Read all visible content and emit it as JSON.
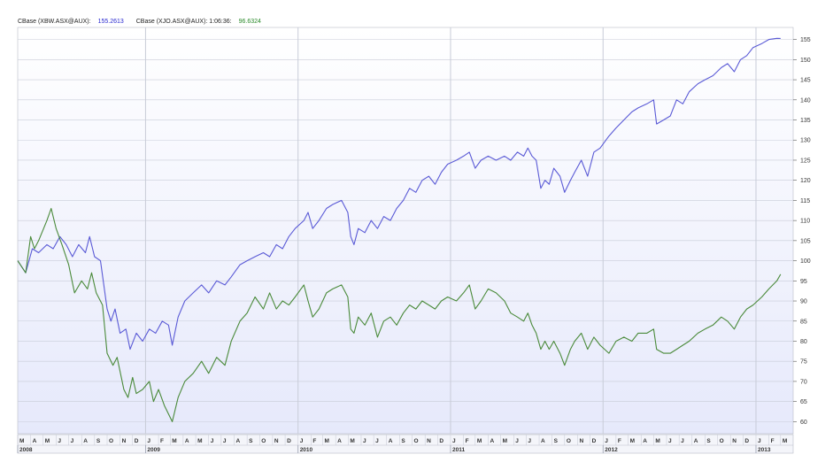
{
  "legend": {
    "series_1_label": "CBase (XBW.ASX@AUX):",
    "series_1_value": "155.2613",
    "series_2_label": "CBase (XJO.ASX@AUX): 1:06:36:",
    "series_2_value": "96.6324"
  },
  "colors": {
    "series_1": "#5a5ad6",
    "series_2": "#4a8a3a",
    "background_top": "#ffffff",
    "background_bottom": "#e6e9fb",
    "grid": "#c8ccd8"
  },
  "chart_data": {
    "type": "line",
    "title": "",
    "xlabel": "",
    "ylabel": "",
    "ylim": [
      57,
      158
    ],
    "xlim": [
      "2008-03-01",
      "2013-03-31"
    ],
    "grid": true,
    "y_axis_side": "right",
    "y_ticks": [
      "60",
      "65",
      "70",
      "75",
      "80",
      "85",
      "90",
      "95",
      "100",
      "105",
      "110",
      "115",
      "120",
      "125",
      "130",
      "135",
      "140",
      "145",
      "150",
      "155"
    ],
    "month_ticks": [
      "M",
      "A",
      "M",
      "J",
      "J",
      "A",
      "S",
      "O",
      "N",
      "D",
      "J",
      "F",
      "M",
      "A",
      "M",
      "J",
      "J",
      "A",
      "S",
      "O",
      "N",
      "D",
      "J",
      "F",
      "M",
      "A",
      "M",
      "J",
      "J",
      "A",
      "S",
      "O",
      "N",
      "D",
      "J",
      "F",
      "M",
      "A",
      "M",
      "J",
      "J",
      "A",
      "S",
      "O",
      "N",
      "D",
      "J",
      "F",
      "M",
      "A",
      "M",
      "J",
      "J",
      "A",
      "S",
      "O",
      "N",
      "D",
      "J",
      "F",
      "M"
    ],
    "year_labels": [
      {
        "label": "2008",
        "month_index": 0
      },
      {
        "label": "2009",
        "month_index": 10
      },
      {
        "label": "2010",
        "month_index": 22
      },
      {
        "label": "2011",
        "month_index": 34
      },
      {
        "label": "2012",
        "month_index": 46
      },
      {
        "label": "2013",
        "month_index": 58
      }
    ],
    "series": [
      {
        "name": "CBase (XBW.ASX@AUX)",
        "points": [
          [
            "2008-03-01",
            100
          ],
          [
            "2008-03-20",
            97
          ],
          [
            "2008-04-05",
            103
          ],
          [
            "2008-04-20",
            102
          ],
          [
            "2008-05-10",
            104
          ],
          [
            "2008-05-25",
            103
          ],
          [
            "2008-06-10",
            106
          ],
          [
            "2008-06-25",
            104
          ],
          [
            "2008-07-10",
            101
          ],
          [
            "2008-07-25",
            104
          ],
          [
            "2008-08-10",
            102
          ],
          [
            "2008-08-20",
            106
          ],
          [
            "2008-09-01",
            101
          ],
          [
            "2008-09-15",
            100
          ],
          [
            "2008-10-01",
            88
          ],
          [
            "2008-10-10",
            85
          ],
          [
            "2008-10-20",
            88
          ],
          [
            "2008-11-01",
            82
          ],
          [
            "2008-11-15",
            83
          ],
          [
            "2008-11-25",
            78
          ],
          [
            "2008-12-10",
            82
          ],
          [
            "2008-12-25",
            80
          ],
          [
            "2009-01-10",
            83
          ],
          [
            "2009-01-25",
            82
          ],
          [
            "2009-02-10",
            85
          ],
          [
            "2009-02-25",
            84
          ],
          [
            "2009-03-06",
            79
          ],
          [
            "2009-03-20",
            86
          ],
          [
            "2009-04-05",
            90
          ],
          [
            "2009-04-25",
            92
          ],
          [
            "2009-05-15",
            94
          ],
          [
            "2009-06-01",
            92
          ],
          [
            "2009-06-20",
            95
          ],
          [
            "2009-07-10",
            94
          ],
          [
            "2009-07-25",
            96
          ],
          [
            "2009-08-15",
            99
          ],
          [
            "2009-09-01",
            100
          ],
          [
            "2009-09-20",
            101
          ],
          [
            "2009-10-10",
            102
          ],
          [
            "2009-10-25",
            101
          ],
          [
            "2009-11-10",
            104
          ],
          [
            "2009-11-25",
            103
          ],
          [
            "2009-12-10",
            106
          ],
          [
            "2009-12-25",
            108
          ],
          [
            "2010-01-15",
            110
          ],
          [
            "2010-01-25",
            112
          ],
          [
            "2010-02-05",
            108
          ],
          [
            "2010-02-20",
            110
          ],
          [
            "2010-03-10",
            113
          ],
          [
            "2010-03-25",
            114
          ],
          [
            "2010-04-15",
            115
          ],
          [
            "2010-04-30",
            112
          ],
          [
            "2010-05-07",
            106
          ],
          [
            "2010-05-15",
            104
          ],
          [
            "2010-05-25",
            108
          ],
          [
            "2010-06-10",
            107
          ],
          [
            "2010-06-25",
            110
          ],
          [
            "2010-07-10",
            108
          ],
          [
            "2010-07-25",
            111
          ],
          [
            "2010-08-10",
            110
          ],
          [
            "2010-08-25",
            113
          ],
          [
            "2010-09-10",
            115
          ],
          [
            "2010-09-25",
            118
          ],
          [
            "2010-10-10",
            117
          ],
          [
            "2010-10-25",
            120
          ],
          [
            "2010-11-10",
            121
          ],
          [
            "2010-11-25",
            119
          ],
          [
            "2010-12-10",
            122
          ],
          [
            "2010-12-25",
            124
          ],
          [
            "2011-01-15",
            125
          ],
          [
            "2011-02-01",
            126
          ],
          [
            "2011-02-15",
            127
          ],
          [
            "2011-03-01",
            123
          ],
          [
            "2011-03-15",
            125
          ],
          [
            "2011-04-01",
            126
          ],
          [
            "2011-04-20",
            125
          ],
          [
            "2011-05-10",
            126
          ],
          [
            "2011-05-25",
            125
          ],
          [
            "2011-06-10",
            127
          ],
          [
            "2011-06-25",
            126
          ],
          [
            "2011-07-05",
            128
          ],
          [
            "2011-07-15",
            126
          ],
          [
            "2011-07-25",
            125
          ],
          [
            "2011-08-05",
            118
          ],
          [
            "2011-08-15",
            120
          ],
          [
            "2011-08-25",
            119
          ],
          [
            "2011-09-05",
            123
          ],
          [
            "2011-09-20",
            121
          ],
          [
            "2011-10-01",
            117
          ],
          [
            "2011-10-15",
            120
          ],
          [
            "2011-10-25",
            122
          ],
          [
            "2011-11-10",
            125
          ],
          [
            "2011-11-25",
            121
          ],
          [
            "2011-12-10",
            127
          ],
          [
            "2011-12-25",
            128
          ],
          [
            "2012-01-15",
            131
          ],
          [
            "2012-02-01",
            133
          ],
          [
            "2012-02-20",
            135
          ],
          [
            "2012-03-10",
            137
          ],
          [
            "2012-03-25",
            138
          ],
          [
            "2012-04-15",
            139
          ],
          [
            "2012-05-01",
            140
          ],
          [
            "2012-05-08",
            134
          ],
          [
            "2012-05-25",
            135
          ],
          [
            "2012-06-10",
            136
          ],
          [
            "2012-06-25",
            140
          ],
          [
            "2012-07-10",
            139
          ],
          [
            "2012-07-25",
            142
          ],
          [
            "2012-08-15",
            144
          ],
          [
            "2012-09-01",
            145
          ],
          [
            "2012-09-20",
            146
          ],
          [
            "2012-10-10",
            148
          ],
          [
            "2012-10-25",
            149
          ],
          [
            "2012-11-10",
            147
          ],
          [
            "2012-11-25",
            150
          ],
          [
            "2012-12-10",
            151
          ],
          [
            "2012-12-25",
            153
          ],
          [
            "2013-01-15",
            154
          ],
          [
            "2013-02-01",
            155
          ],
          [
            "2013-02-20",
            155.3
          ],
          [
            "2013-03-01",
            155.2613
          ]
        ]
      },
      {
        "name": "CBase (XJO.ASX@AUX)",
        "points": [
          [
            "2008-03-01",
            100
          ],
          [
            "2008-03-20",
            97
          ],
          [
            "2008-04-01",
            106
          ],
          [
            "2008-04-10",
            103
          ],
          [
            "2008-04-20",
            105
          ],
          [
            "2008-05-10",
            110
          ],
          [
            "2008-05-20",
            113
          ],
          [
            "2008-06-01",
            108
          ],
          [
            "2008-06-15",
            104
          ],
          [
            "2008-07-01",
            99
          ],
          [
            "2008-07-15",
            92
          ],
          [
            "2008-08-01",
            95
          ],
          [
            "2008-08-15",
            93
          ],
          [
            "2008-08-25",
            97
          ],
          [
            "2008-09-05",
            92
          ],
          [
            "2008-09-20",
            89
          ],
          [
            "2008-10-01",
            77
          ],
          [
            "2008-10-15",
            74
          ],
          [
            "2008-10-25",
            76
          ],
          [
            "2008-11-10",
            68
          ],
          [
            "2008-11-20",
            66
          ],
          [
            "2008-12-01",
            71
          ],
          [
            "2008-12-10",
            67
          ],
          [
            "2008-12-25",
            68
          ],
          [
            "2009-01-10",
            70
          ],
          [
            "2009-01-20",
            65
          ],
          [
            "2009-02-01",
            68
          ],
          [
            "2009-02-15",
            64
          ],
          [
            "2009-03-06",
            60
          ],
          [
            "2009-03-20",
            66
          ],
          [
            "2009-04-05",
            70
          ],
          [
            "2009-04-25",
            72
          ],
          [
            "2009-05-15",
            75
          ],
          [
            "2009-06-01",
            72
          ],
          [
            "2009-06-20",
            76
          ],
          [
            "2009-07-10",
            74
          ],
          [
            "2009-07-25",
            80
          ],
          [
            "2009-08-15",
            85
          ],
          [
            "2009-09-01",
            87
          ],
          [
            "2009-09-20",
            91
          ],
          [
            "2009-10-10",
            88
          ],
          [
            "2009-10-25",
            92
          ],
          [
            "2009-11-10",
            88
          ],
          [
            "2009-11-25",
            90
          ],
          [
            "2009-12-10",
            89
          ],
          [
            "2009-12-25",
            91
          ],
          [
            "2010-01-15",
            94
          ],
          [
            "2010-01-25",
            90
          ],
          [
            "2010-02-05",
            86
          ],
          [
            "2010-02-20",
            88
          ],
          [
            "2010-03-10",
            92
          ],
          [
            "2010-03-25",
            93
          ],
          [
            "2010-04-15",
            94
          ],
          [
            "2010-04-30",
            91
          ],
          [
            "2010-05-07",
            83
          ],
          [
            "2010-05-15",
            82
          ],
          [
            "2010-05-25",
            86
          ],
          [
            "2010-06-10",
            84
          ],
          [
            "2010-06-25",
            87
          ],
          [
            "2010-07-10",
            81
          ],
          [
            "2010-07-25",
            85
          ],
          [
            "2010-08-10",
            86
          ],
          [
            "2010-08-25",
            84
          ],
          [
            "2010-09-10",
            87
          ],
          [
            "2010-09-25",
            89
          ],
          [
            "2010-10-10",
            88
          ],
          [
            "2010-10-25",
            90
          ],
          [
            "2010-11-10",
            89
          ],
          [
            "2010-11-25",
            88
          ],
          [
            "2010-12-10",
            90
          ],
          [
            "2010-12-25",
            91
          ],
          [
            "2011-01-15",
            90
          ],
          [
            "2011-02-01",
            92
          ],
          [
            "2011-02-15",
            94
          ],
          [
            "2011-03-01",
            88
          ],
          [
            "2011-03-15",
            90
          ],
          [
            "2011-04-01",
            93
          ],
          [
            "2011-04-20",
            92
          ],
          [
            "2011-05-10",
            90
          ],
          [
            "2011-05-25",
            87
          ],
          [
            "2011-06-10",
            86
          ],
          [
            "2011-06-25",
            85
          ],
          [
            "2011-07-05",
            87
          ],
          [
            "2011-07-15",
            84
          ],
          [
            "2011-07-25",
            82
          ],
          [
            "2011-08-05",
            78
          ],
          [
            "2011-08-15",
            80
          ],
          [
            "2011-08-25",
            78
          ],
          [
            "2011-09-05",
            80
          ],
          [
            "2011-09-20",
            77
          ],
          [
            "2011-10-01",
            74
          ],
          [
            "2011-10-15",
            78
          ],
          [
            "2011-10-25",
            80
          ],
          [
            "2011-11-10",
            82
          ],
          [
            "2011-11-25",
            78
          ],
          [
            "2011-12-10",
            81
          ],
          [
            "2011-12-25",
            79
          ],
          [
            "2012-01-15",
            77
          ],
          [
            "2012-02-01",
            80
          ],
          [
            "2012-02-20",
            81
          ],
          [
            "2012-03-10",
            80
          ],
          [
            "2012-03-25",
            82
          ],
          [
            "2012-04-15",
            82
          ],
          [
            "2012-05-01",
            83
          ],
          [
            "2012-05-08",
            78
          ],
          [
            "2012-05-25",
            77
          ],
          [
            "2012-06-10",
            77
          ],
          [
            "2012-06-25",
            78
          ],
          [
            "2012-07-10",
            79
          ],
          [
            "2012-07-25",
            80
          ],
          [
            "2012-08-15",
            82
          ],
          [
            "2012-09-01",
            83
          ],
          [
            "2012-09-20",
            84
          ],
          [
            "2012-10-10",
            86
          ],
          [
            "2012-10-25",
            85
          ],
          [
            "2012-11-10",
            83
          ],
          [
            "2012-11-25",
            86
          ],
          [
            "2012-12-10",
            88
          ],
          [
            "2012-12-25",
            89
          ],
          [
            "2013-01-15",
            91
          ],
          [
            "2013-02-01",
            93
          ],
          [
            "2013-02-20",
            95
          ],
          [
            "2013-03-01",
            96.6324
          ]
        ]
      }
    ]
  }
}
